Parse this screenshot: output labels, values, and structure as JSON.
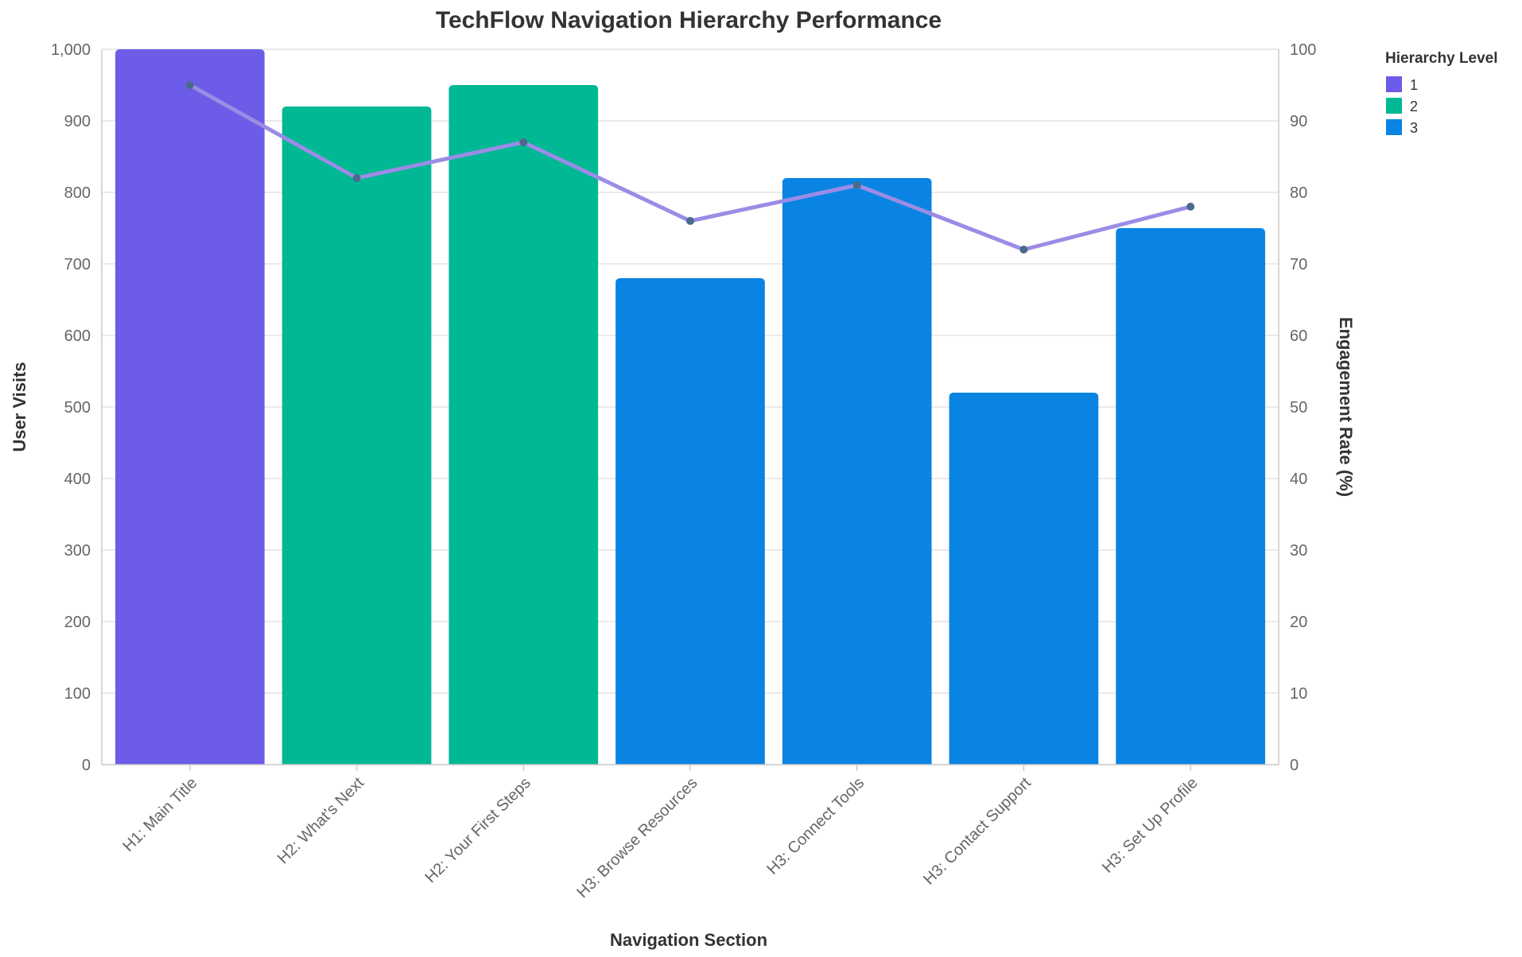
{
  "chart_data": {
    "type": "bar",
    "title": "TechFlow Navigation Hierarchy Performance",
    "xlabel": "Navigation Section",
    "ylabel": "User Visits",
    "y2label": "Engagement Rate (%)",
    "categories": [
      "H1: Main Title",
      "H2: What's Next",
      "H2: Your First Steps",
      "H3: Browse Resources",
      "H3: Connect Tools",
      "H3: Contact Support",
      "H3: Set Up Profile"
    ],
    "hierarchy_levels": [
      1,
      2,
      2,
      3,
      3,
      3,
      3
    ],
    "series": [
      {
        "kind": "bar",
        "axis": "left",
        "values": [
          1000,
          920,
          950,
          680,
          820,
          520,
          750
        ]
      },
      {
        "kind": "line",
        "axis": "right",
        "values": [
          95,
          82,
          87,
          76,
          81,
          72,
          78
        ],
        "color": "#9b8ce6",
        "marker_color": "#4a6a8c"
      }
    ],
    "ylim": [
      0,
      1000
    ],
    "y2lim": [
      0,
      100
    ],
    "yticks": [
      "0",
      "100",
      "200",
      "300",
      "400",
      "500",
      "600",
      "700",
      "800",
      "900",
      "1,000"
    ],
    "y2ticks": [
      "0",
      "10",
      "20",
      "30",
      "40",
      "50",
      "60",
      "70",
      "80",
      "90",
      "100"
    ],
    "grid": true,
    "legend": {
      "title": "Hierarchy Level",
      "placement": "top-right",
      "items": [
        {
          "label": "1",
          "color": "#6c5ce7"
        },
        {
          "label": "2",
          "color": "#00b894"
        },
        {
          "label": "3",
          "color": "#0984e3"
        }
      ]
    },
    "colors": {
      "1": "#6c5ce7",
      "2": "#00b894",
      "3": "#0984e3",
      "grid": "#dddddd",
      "axis": "#cccccc"
    }
  }
}
